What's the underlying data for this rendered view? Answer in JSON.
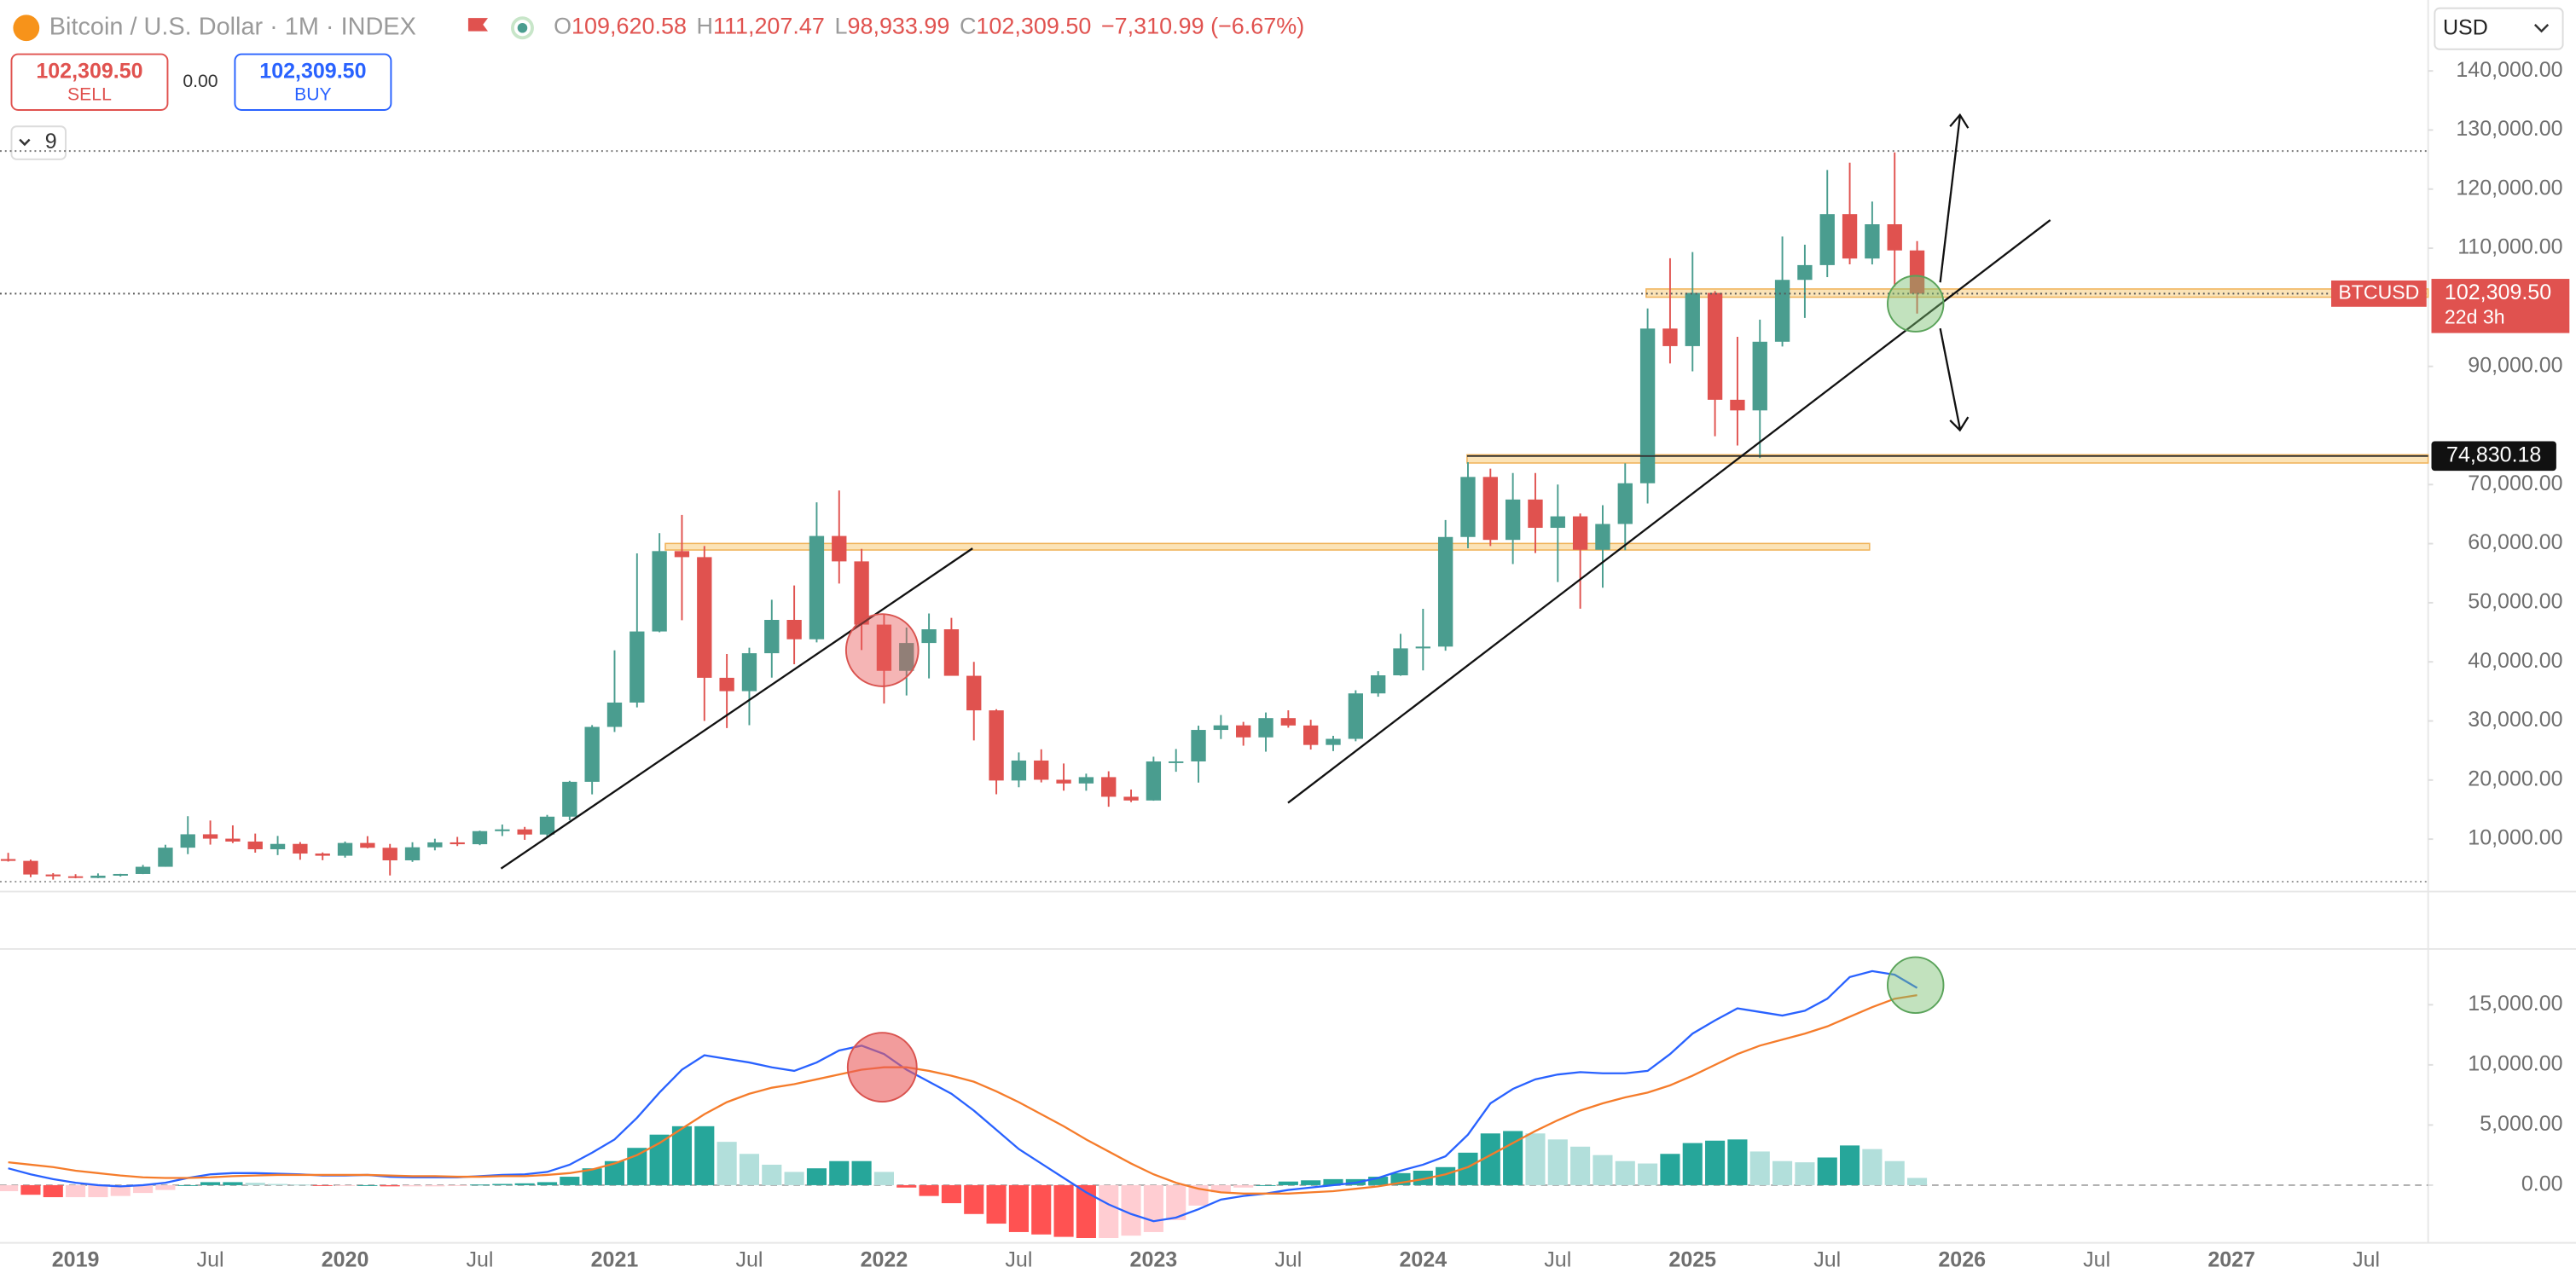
{
  "header": {
    "symbol": "Bitcoin / U.S. Dollar · 1M · INDEX",
    "quote_fields": [
      "O",
      "H",
      "L",
      "C"
    ],
    "quote_values": [
      "109,620.58",
      "111,207.47",
      "98,933.99",
      "102,309.50"
    ],
    "change": "−7,310.99 (−6.67%)",
    "sell_price": "102,309.50",
    "sell": "SELL",
    "spread": "0.00",
    "buy_price": "102,309.50",
    "buy": "BUY",
    "indicators_count": "9",
    "currency": "USD"
  },
  "chart_data": [
    {
      "type": "candlestick",
      "up_color": "#4a9d8f",
      "down_color": "#e0524f",
      "ylim": [
        2800,
        152000
      ],
      "yticks": [
        {
          "value": 140000,
          "label": "140,000.00"
        },
        {
          "value": 130000,
          "label": "130,000.00"
        },
        {
          "value": 120000,
          "label": "120,000.00"
        },
        {
          "value": 110000,
          "label": "110,000.00"
        },
        {
          "value": 90000,
          "label": "90,000.00"
        },
        {
          "value": 70000,
          "label": "70,000.00"
        },
        {
          "value": 60000,
          "label": "60,000.00"
        },
        {
          "value": 50000,
          "label": "50,000.00"
        },
        {
          "value": 40000,
          "label": "40,000.00"
        },
        {
          "value": 30000,
          "label": "30,000.00"
        },
        {
          "value": 20000,
          "label": "20,000.00"
        },
        {
          "value": 10000,
          "label": "10,000.00"
        }
      ],
      "categories": [
        null,
        null,
        null,
        "2019",
        null,
        null,
        null,
        null,
        null,
        "Jul",
        null,
        null,
        null,
        null,
        null,
        "2020",
        null,
        null,
        null,
        null,
        null,
        "Jul",
        null,
        null,
        null,
        null,
        null,
        "2021",
        null,
        null,
        null,
        null,
        null,
        "Jul",
        null,
        null,
        null,
        null,
        null,
        "2022",
        null,
        null,
        null,
        null,
        null,
        "Jul",
        null,
        null,
        null,
        null,
        null,
        "2023",
        null,
        null,
        null,
        null,
        null,
        "Jul",
        null,
        null,
        null,
        null,
        null,
        "2024",
        null,
        null,
        null,
        null,
        null,
        "Jul",
        null,
        null,
        null,
        null,
        null,
        "2025",
        null,
        null,
        null,
        null,
        null,
        "Jul",
        null,
        null,
        null,
        null,
        null,
        "2026",
        null,
        null,
        null,
        null,
        null,
        "Jul",
        null,
        null,
        null,
        null,
        null,
        "2027",
        null,
        null,
        null,
        null,
        null,
        "Jul",
        null,
        null
      ],
      "open": [
        6626,
        6317,
        4015,
        3709,
        3432,
        3814,
        4105,
        5320,
        8555,
        10818,
        10080,
        9590,
        8290,
        9190,
        7560,
        7190,
        9350,
        8540,
        6410,
        8620,
        9450,
        9140,
        11350,
        11650,
        10780,
        13800,
        19700,
        28990,
        33110,
        45140,
        58740,
        57720,
        37300,
        35040,
        41460,
        47100,
        43820,
        61300,
        57000,
        46300,
        38480,
        43190,
        45510,
        37640,
        31790,
        19920,
        23300,
        20050,
        19420,
        20490,
        17170,
        16540,
        23140,
        23150,
        28480,
        29250,
        27220,
        30480,
        29230,
        25940,
        26970,
        34660,
        37720,
        42280,
        42580,
        61130,
        71290,
        60640,
        67470,
        62680,
        64620,
        58970,
        63330,
        70220,
        96400,
        93430,
        102430,
        84350,
        82550,
        94170,
        104640,
        107140,
        115760,
        108250,
        114050,
        109620.58,
        null,
        null,
        null,
        null,
        null,
        null,
        null,
        null,
        null,
        null,
        null,
        null,
        null,
        null,
        null,
        null,
        null,
        null,
        null,
        null,
        null,
        null
      ],
      "high": [
        7680,
        6540,
        4250,
        4070,
        4200,
        4130,
        5630,
        9050,
        13880,
        13150,
        12330,
        10940,
        10540,
        9500,
        7750,
        9590,
        10500,
        9190,
        9470,
        10070,
        10380,
        11440,
        12470,
        12070,
        14100,
        19860,
        29300,
        41950,
        58350,
        61780,
        64860,
        59600,
        41330,
        42400,
        50500,
        52920,
        67000,
        69000,
        59120,
        48000,
        45800,
        48190,
        47440,
        40000,
        31980,
        24670,
        25200,
        22800,
        21080,
        21480,
        18390,
        23950,
        25250,
        29200,
        31000,
        29840,
        31430,
        31800,
        30200,
        27480,
        35190,
        38420,
        44740,
        48970,
        64000,
        73790,
        72700,
        71950,
        71960,
        70000,
        65100,
        66500,
        73600,
        99800,
        108300,
        109350,
        102750,
        95000,
        97900,
        111970,
        110580,
        123230,
        124470,
        117900,
        126200,
        111207.47,
        null,
        null,
        null,
        null,
        null,
        null,
        null,
        null,
        null,
        null,
        null,
        null,
        null,
        null,
        null,
        null,
        null,
        null,
        null,
        null,
        null,
        null
      ],
      "low": [
        6200,
        3560,
        3150,
        3370,
        3390,
        3670,
        4080,
        5320,
        7460,
        9070,
        9330,
        7710,
        7300,
        6510,
        6430,
        6870,
        8450,
        3850,
        6150,
        8100,
        8830,
        8980,
        10520,
        9880,
        10370,
        13200,
        17570,
        28130,
        32300,
        45000,
        47040,
        30000,
        28800,
        29280,
        37330,
        39600,
        43290,
        53250,
        42000,
        32950,
        34320,
        37200,
        37700,
        26700,
        17600,
        18780,
        19600,
        18200,
        18190,
        15480,
        16260,
        16500,
        21400,
        19570,
        26940,
        25810,
        24800,
        28860,
        25160,
        24900,
        26560,
        34100,
        37640,
        38550,
        41890,
        59220,
        59600,
        56550,
        58400,
        53500,
        49000,
        52550,
        58900,
        66800,
        90500,
        89160,
        78170,
        76600,
        74500,
        93370,
        98200,
        105100,
        107270,
        107260,
        103500,
        98933.99,
        null,
        null,
        null,
        null,
        null,
        null,
        null,
        null,
        null,
        null,
        null,
        null,
        null,
        null,
        null,
        null,
        null,
        null,
        null,
        null,
        null,
        null
      ],
      "close": [
        6317,
        4015,
        3709,
        3432,
        3814,
        4105,
        5320,
        8555,
        10818,
        10080,
        9590,
        8290,
        9190,
        7560,
        7190,
        9350,
        8540,
        6410,
        8620,
        9450,
        9140,
        11350,
        11650,
        10780,
        13800,
        19700,
        28990,
        33110,
        45140,
        58740,
        57720,
        37300,
        35040,
        41460,
        47100,
        43820,
        61300,
        57000,
        46300,
        38480,
        43190,
        45510,
        37640,
        31790,
        19920,
        23300,
        20050,
        19420,
        20490,
        17170,
        16540,
        23140,
        23150,
        28480,
        29250,
        27220,
        30480,
        29230,
        25940,
        26970,
        34660,
        37720,
        42280,
        42580,
        61130,
        71290,
        60640,
        67470,
        62680,
        64620,
        58970,
        63330,
        70220,
        96400,
        93430,
        102430,
        84350,
        82550,
        94170,
        104640,
        107140,
        115760,
        108250,
        114050,
        109620.58,
        102309.5,
        null,
        null,
        null,
        null,
        null,
        null,
        null,
        null,
        null,
        null,
        null,
        null,
        null,
        null,
        null,
        null,
        null,
        null,
        null,
        null,
        null,
        null
      ],
      "price_tag": {
        "symbol": "BTCUSD",
        "label": "102,309.50",
        "countdown": "22d 3h",
        "color": "#e0524f"
      },
      "level": {
        "value": 74830.18,
        "label": "74,830.18"
      }
    },
    {
      "type": "macd",
      "macd_color": "#2962ff",
      "signal_color": "#f57c2b",
      "hist_colors": [
        "#26a69a",
        "#b2dfdb",
        "#ff5252",
        "#ffcdd2"
      ],
      "ylim": [
        -4800,
        19500
      ],
      "yticks": [
        {
          "value": 15000,
          "label": "15,000.00"
        },
        {
          "value": 10000,
          "label": "10,000.00"
        },
        {
          "value": 5000,
          "label": "5,000.00"
        },
        {
          "value": 0,
          "label": "0.00"
        }
      ],
      "macd": [
        1400,
        900,
        500,
        200,
        0,
        -100,
        0,
        200,
        600,
        900,
        1000,
        1000,
        950,
        900,
        800,
        800,
        850,
        700,
        650,
        650,
        650,
        750,
        850,
        900,
        1100,
        1700,
        2700,
        3800,
        5600,
        7700,
        9600,
        10800,
        10500,
        10200,
        9800,
        9500,
        10200,
        11200,
        11600,
        10900,
        9600,
        8600,
        7600,
        6200,
        4600,
        3000,
        1800,
        600,
        -600,
        -1600,
        -2400,
        -3000,
        -2700,
        -2000,
        -1200,
        -900,
        -700,
        -400,
        -200,
        0,
        200,
        600,
        1200,
        1700,
        2400,
        4200,
        6800,
        8000,
        8800,
        9200,
        9400,
        9300,
        9300,
        9500,
        10900,
        12600,
        13700,
        14700,
        14400,
        14100,
        14500,
        15500,
        17300,
        17800,
        17500,
        16400,
        null,
        null,
        null,
        null,
        null,
        null,
        null,
        null,
        null,
        null,
        null,
        null,
        null,
        null,
        null,
        null,
        null,
        null,
        null,
        null,
        null,
        null
      ],
      "signal": [
        1900,
        1700,
        1500,
        1200,
        1000,
        800,
        650,
        600,
        600,
        650,
        750,
        800,
        850,
        850,
        850,
        850,
        850,
        800,
        750,
        750,
        700,
        700,
        750,
        750,
        850,
        1000,
        1300,
        1800,
        2500,
        3500,
        4700,
        5900,
        6900,
        7600,
        8100,
        8400,
        8800,
        9200,
        9600,
        9800,
        9800,
        9500,
        9100,
        8600,
        7800,
        6900,
        5900,
        4900,
        3800,
        2800,
        1800,
        900,
        200,
        -300,
        -600,
        -700,
        -700,
        -700,
        -600,
        -500,
        -300,
        -100,
        200,
        500,
        900,
        1500,
        2500,
        3500,
        4500,
        5400,
        6200,
        6800,
        7300,
        7700,
        8300,
        9100,
        10000,
        10900,
        11600,
        12100,
        12600,
        13200,
        14000,
        14800,
        15500,
        15800,
        null,
        null,
        null,
        null,
        null,
        null,
        null,
        null,
        null,
        null,
        null,
        null,
        null,
        null,
        null,
        null,
        null,
        null,
        null,
        null,
        null,
        null
      ],
      "histogram": [
        -500,
        -800,
        -1000,
        -1000,
        -1000,
        -900,
        -650,
        -400,
        0,
        250,
        250,
        200,
        100,
        50,
        -50,
        -50,
        0,
        -100,
        -100,
        -100,
        -50,
        50,
        100,
        150,
        250,
        700,
        1400,
        2000,
        3100,
        4200,
        4900,
        4900,
        3600,
        2600,
        1700,
        1100,
        1400,
        2000,
        2000,
        1100,
        -200,
        -900,
        -1500,
        -2400,
        -3200,
        -3900,
        -4100,
        -4300,
        -4400,
        -4400,
        -4200,
        -3900,
        -2900,
        -1700,
        -600,
        -200,
        0,
        300,
        400,
        500,
        500,
        700,
        1000,
        1200,
        1500,
        2700,
        4300,
        4500,
        4300,
        3800,
        3200,
        2500,
        2000,
        1800,
        2600,
        3500,
        3700,
        3800,
        2800,
        2000,
        1900,
        2300,
        3300,
        3000,
        2000,
        600,
        null,
        null,
        null,
        null,
        null,
        null,
        null,
        null,
        null,
        null,
        null,
        null,
        null,
        null,
        null,
        null,
        null,
        null,
        null,
        null,
        null,
        null
      ]
    }
  ]
}
